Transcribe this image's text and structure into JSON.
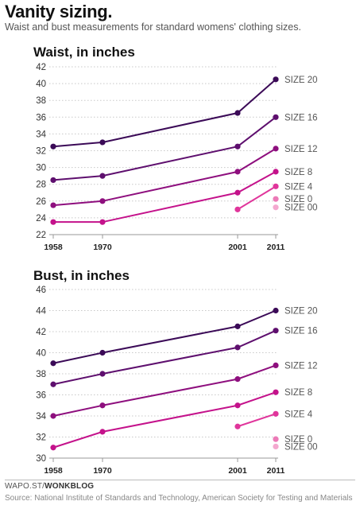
{
  "header": {
    "title": "Vanity sizing.",
    "subtitle": "Waist and bust measurements for standard womens' clothing sizes."
  },
  "footer": {
    "credit_prefix": "WAPO.ST/",
    "credit_bold": "WONKBLOG",
    "source": "Source: National Institute of Standards and Technology, American Society for Testing and Materials"
  },
  "chart_data": [
    {
      "type": "line",
      "title": "Waist, in inches",
      "xlabel": "",
      "ylabel": "",
      "x_ticks": [
        1958,
        1970,
        2001,
        2011
      ],
      "y_ticks": [
        22,
        24,
        26,
        28,
        30,
        32,
        34,
        36,
        38,
        40,
        42
      ],
      "ylim": [
        22,
        42
      ],
      "grid": "horizontal-dotted",
      "series": [
        {
          "name": "SIZE 20",
          "color": "#3b0a57",
          "points": [
            [
              1958,
              32.5
            ],
            [
              1970,
              33
            ],
            [
              2001,
              36.5
            ],
            [
              2011,
              40.5
            ]
          ]
        },
        {
          "name": "SIZE 16",
          "color": "#5e0f6e",
          "points": [
            [
              1958,
              28.5
            ],
            [
              1970,
              29
            ],
            [
              2001,
              32.5
            ],
            [
              2011,
              36
            ]
          ]
        },
        {
          "name": "SIZE 12",
          "color": "#8e0f7e",
          "points": [
            [
              1958,
              25.5
            ],
            [
              1970,
              26
            ],
            [
              2001,
              29.5
            ],
            [
              2011,
              32.25
            ]
          ]
        },
        {
          "name": "SIZE 8",
          "color": "#c4128b",
          "points": [
            [
              1958,
              23.5
            ],
            [
              1970,
              23.5
            ],
            [
              2001,
              27
            ],
            [
              2011,
              29.5
            ]
          ]
        },
        {
          "name": "SIZE 4",
          "color": "#e0359b",
          "points": [
            [
              2001,
              25
            ],
            [
              2011,
              27.75
            ]
          ]
        },
        {
          "name": "SIZE 0",
          "color": "#ec7ab7",
          "points": [
            [
              2011,
              26.25
            ]
          ]
        },
        {
          "name": "SIZE 00",
          "color": "#f4a8cf",
          "points": [
            [
              2011,
              25.25
            ]
          ]
        }
      ]
    },
    {
      "type": "line",
      "title": "Bust, in inches",
      "xlabel": "",
      "ylabel": "",
      "x_ticks": [
        1958,
        1970,
        2001,
        2011
      ],
      "y_ticks": [
        30,
        32,
        34,
        36,
        38,
        40,
        42,
        44,
        46
      ],
      "ylim": [
        30,
        46
      ],
      "grid": "horizontal-dotted",
      "series": [
        {
          "name": "SIZE 20",
          "color": "#3b0a57",
          "points": [
            [
              1958,
              39
            ],
            [
              1970,
              40
            ],
            [
              2001,
              42.5
            ],
            [
              2011,
              44
            ]
          ]
        },
        {
          "name": "SIZE 16",
          "color": "#5e0f6e",
          "points": [
            [
              1958,
              37
            ],
            [
              1970,
              38
            ],
            [
              2001,
              40.5
            ],
            [
              2011,
              42.1
            ]
          ]
        },
        {
          "name": "SIZE 12",
          "color": "#8e0f7e",
          "points": [
            [
              1958,
              34
            ],
            [
              1970,
              35
            ],
            [
              2001,
              37.5
            ],
            [
              2011,
              38.8
            ]
          ]
        },
        {
          "name": "SIZE 8",
          "color": "#c4128b",
          "points": [
            [
              1958,
              31
            ],
            [
              1970,
              32.5
            ],
            [
              2001,
              35
            ],
            [
              2011,
              36.25
            ]
          ]
        },
        {
          "name": "SIZE 4",
          "color": "#e0359b",
          "points": [
            [
              2001,
              33
            ],
            [
              2011,
              34.2
            ]
          ]
        },
        {
          "name": "SIZE 0",
          "color": "#ec7ab7",
          "points": [
            [
              2011,
              31.8
            ]
          ]
        },
        {
          "name": "SIZE 00",
          "color": "#f4a8cf",
          "points": [
            [
              2011,
              31.1
            ]
          ]
        }
      ]
    }
  ]
}
